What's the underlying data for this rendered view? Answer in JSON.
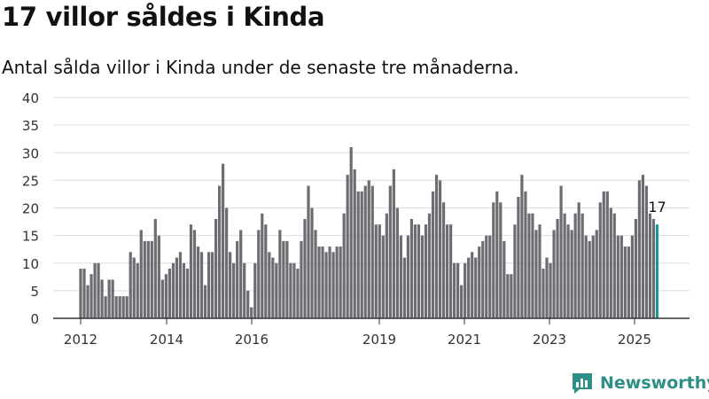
{
  "header": {
    "title": "17 villor såldes i Kinda",
    "subtitle": "Antal sålda villor i Kinda under de senaste tre månaderna."
  },
  "brand": {
    "name": "Newsworthy",
    "icon": "newsworthy-logo-icon"
  },
  "colors": {
    "bar": "#6d6c72",
    "highlight": "#1a9a93",
    "grid": "#dddddd",
    "axis": "#333333",
    "brand": "#2d8f86"
  },
  "chart_data": {
    "type": "bar",
    "title": "17 villor såldes i Kinda",
    "subtitle": "Antal sålda villor i Kinda under de senaste tre månaderna.",
    "xlabel": "",
    "ylabel": "",
    "ylim": [
      0,
      40
    ],
    "yticks": [
      0,
      5,
      10,
      15,
      20,
      25,
      30,
      35,
      40
    ],
    "xticks": [
      "2012",
      "2014",
      "2016",
      "2019",
      "2021",
      "2023",
      "2025"
    ],
    "grid": true,
    "highlight_label": "17",
    "series": [
      {
        "values": [
          9,
          9,
          6,
          8,
          10,
          10,
          7,
          4,
          7,
          7,
          4,
          4,
          4,
          4,
          12,
          11,
          10,
          16,
          14,
          14,
          14,
          18,
          15,
          7,
          8,
          9,
          10,
          11,
          12,
          10,
          9,
          17,
          16,
          13,
          12,
          6,
          12,
          12,
          18,
          24,
          28,
          20,
          12,
          10,
          14,
          16,
          10,
          5,
          2,
          10,
          16,
          19,
          17,
          12,
          11,
          10,
          16,
          14,
          14,
          10,
          10,
          9,
          14,
          18,
          24,
          20,
          16,
          13,
          13,
          12,
          13,
          12,
          13,
          13,
          19,
          26,
          31,
          27,
          23,
          23,
          24,
          25,
          24,
          17,
          17,
          15,
          19,
          24,
          27,
          20,
          15,
          11,
          15,
          18,
          17,
          17,
          15,
          17,
          19,
          23,
          26,
          25,
          21,
          17,
          17,
          10,
          10,
          6,
          10,
          11,
          12,
          11,
          13,
          14,
          15,
          15,
          21,
          23,
          21,
          14,
          8,
          8,
          17,
          22,
          26,
          23,
          19,
          19,
          16,
          17,
          9,
          11,
          10,
          16,
          18,
          24,
          19,
          17,
          16,
          19,
          21,
          19,
          15,
          14,
          15,
          16,
          21,
          23,
          23,
          20,
          19,
          15,
          15,
          13,
          13,
          15,
          18,
          25,
          26,
          24,
          19,
          18,
          17
        ]
      }
    ]
  }
}
